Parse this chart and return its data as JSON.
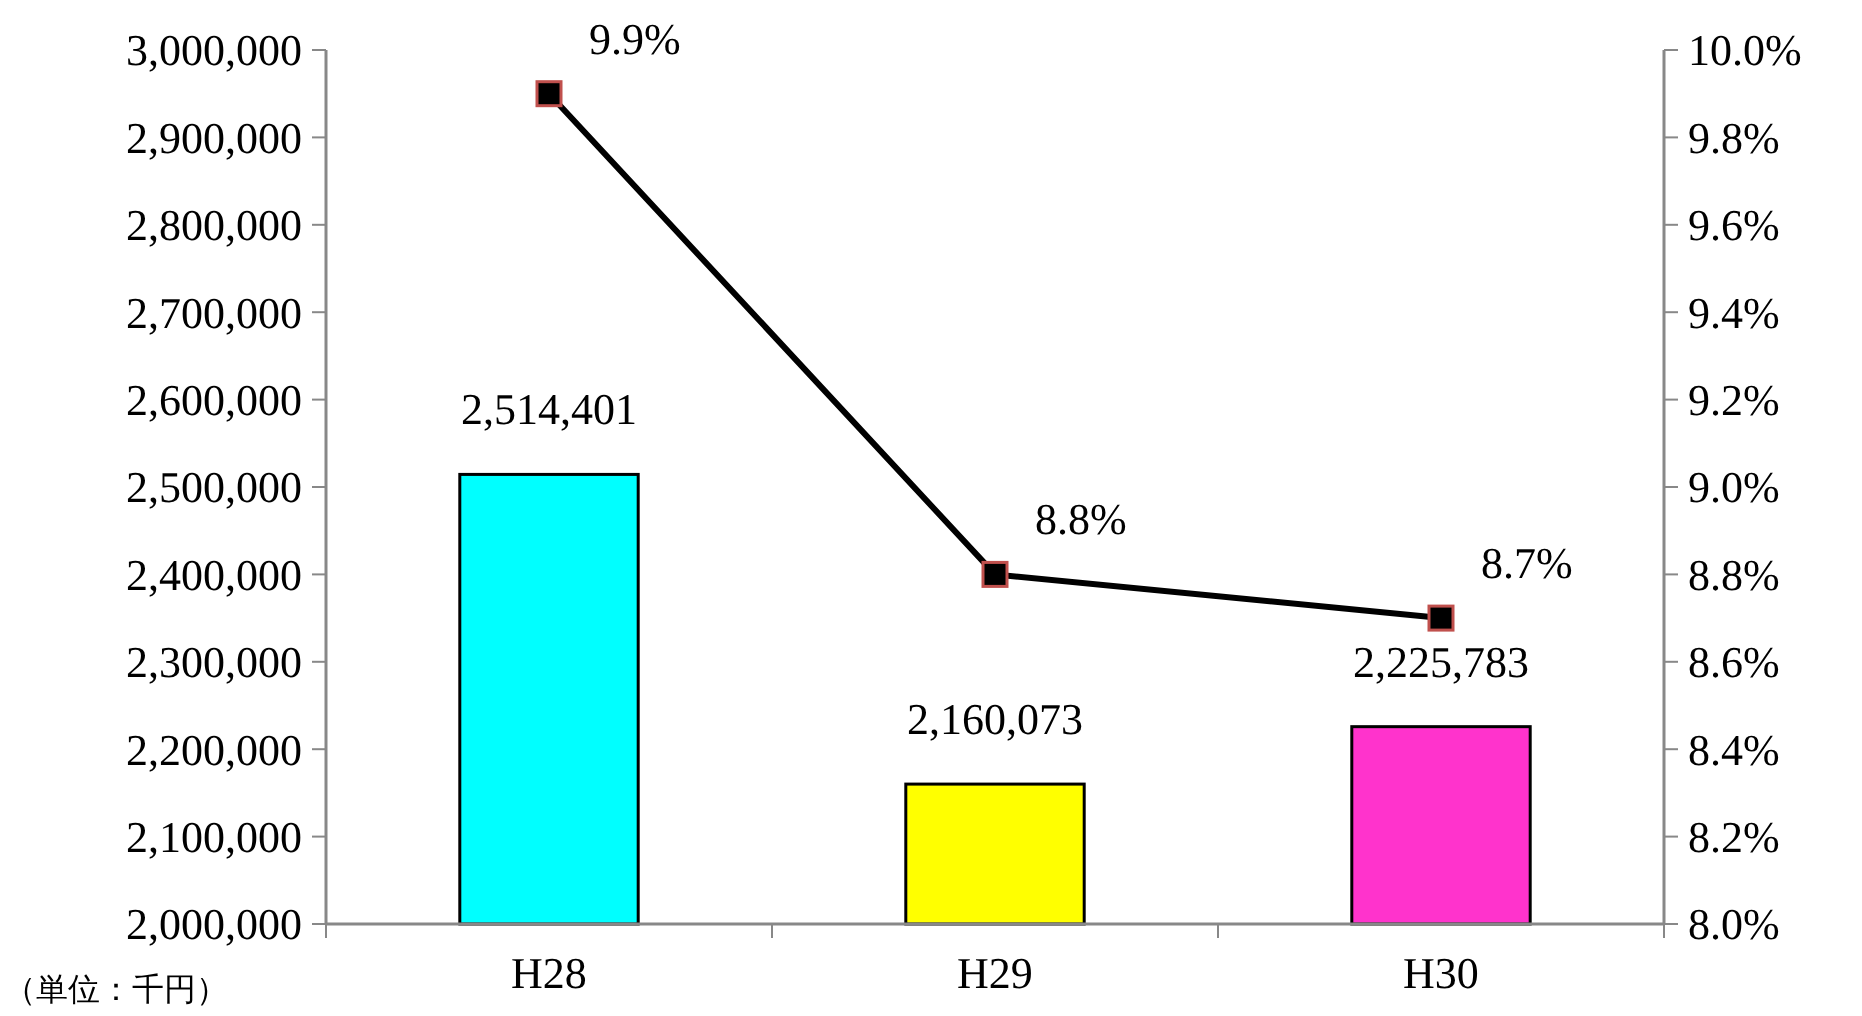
{
  "chart_data": {
    "type": "bar",
    "categories": [
      "H28",
      "H29",
      "H30"
    ],
    "series": [
      {
        "values": [
          2514401,
          2160073,
          2225783
        ],
        "colors": [
          "#00ffff",
          "#ffff00",
          "#ff33cc"
        ],
        "value_labels": [
          "2,514,401",
          "2,160,073",
          "2,225,783"
        ]
      },
      {
        "type": "line",
        "axis": "y2",
        "color": "#000000",
        "values": [
          9.9,
          8.8,
          8.7
        ],
        "value_labels": [
          "9.9%",
          "8.8%",
          "8.7%"
        ],
        "marker": "square"
      }
    ],
    "ylim": [
      2000000,
      3000000
    ],
    "yticks": [
      {
        "value": 2000000,
        "label": "2,000,000"
      },
      {
        "value": 2100000,
        "label": "2,100,000"
      },
      {
        "value": 2200000,
        "label": "2,200,000"
      },
      {
        "value": 2300000,
        "label": "2,300,000"
      },
      {
        "value": 2400000,
        "label": "2,400,000"
      },
      {
        "value": 2500000,
        "label": "2,500,000"
      },
      {
        "value": 2600000,
        "label": "2,600,000"
      },
      {
        "value": 2700000,
        "label": "2,700,000"
      },
      {
        "value": 2800000,
        "label": "2,800,000"
      },
      {
        "value": 2900000,
        "label": "2,900,000"
      },
      {
        "value": 3000000,
        "label": "3,000,000"
      }
    ],
    "y2lim": [
      8.0,
      10.0
    ],
    "y2ticks": [
      {
        "value": 8.0,
        "label": "8.0%"
      },
      {
        "value": 8.2,
        "label": "8.2%"
      },
      {
        "value": 8.4,
        "label": "8.4%"
      },
      {
        "value": 8.6,
        "label": "8.6%"
      },
      {
        "value": 8.8,
        "label": "8.8%"
      },
      {
        "value": 9.0,
        "label": "9.0%"
      },
      {
        "value": 9.2,
        "label": "9.2%"
      },
      {
        "value": 9.4,
        "label": "9.4%"
      },
      {
        "value": 9.6,
        "label": "9.6%"
      },
      {
        "value": 9.8,
        "label": "9.8%"
      },
      {
        "value": 10.0,
        "label": "10.0%"
      }
    ],
    "annotations": [
      "（単位：千円）"
    ],
    "grid": false
  }
}
